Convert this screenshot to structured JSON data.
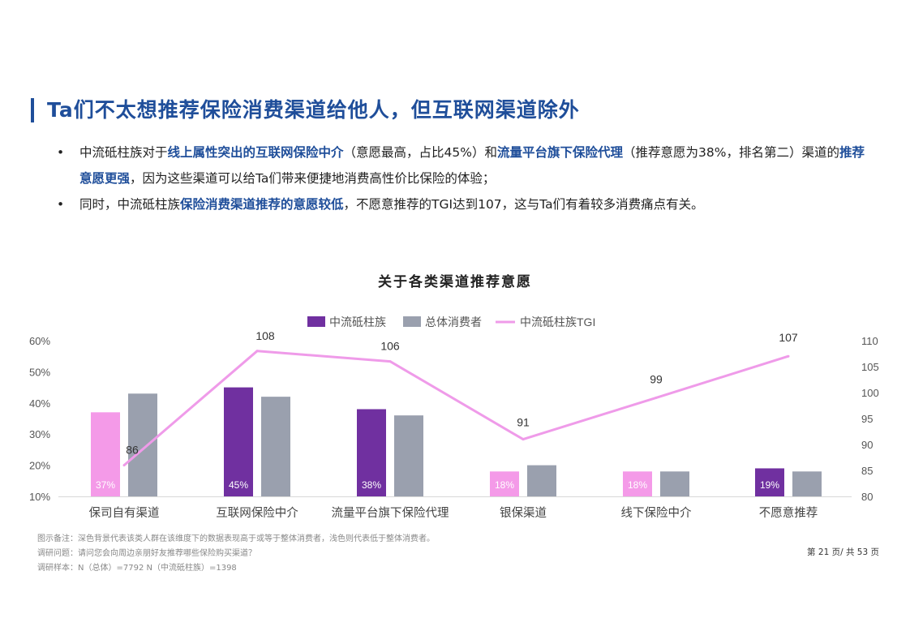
{
  "page": {
    "title": "Ta们不太想推荐保险消费渠道给他人，但互联网渠道除外",
    "bullets": [
      {
        "parts": [
          {
            "t": "中流砥柱族对于",
            "hl": false
          },
          {
            "t": "线上属性突出的互联网保险中介",
            "hl": true
          },
          {
            "t": "（意愿最高，占比45%）和",
            "hl": false
          },
          {
            "t": "流量平台旗下保险代理",
            "hl": true
          },
          {
            "t": "（推荐意愿为38%，排名第二）渠道的",
            "hl": false
          },
          {
            "t": "推荐意愿更强",
            "hl": true
          },
          {
            "t": "，因为这些渠道可以给Ta们带来便捷地消费高性价比保险的体验；",
            "hl": false
          }
        ]
      },
      {
        "parts": [
          {
            "t": "同时，中流砥柱族",
            "hl": false
          },
          {
            "t": "保险消费渠道推荐的意愿较低",
            "hl": true
          },
          {
            "t": "，不愿意推荐的TGI达到107，这与Ta们有着较多消费痛点有关。",
            "hl": false
          }
        ]
      }
    ],
    "bullet_symbol": "•",
    "notes": [
      "图示备注：深色背景代表该类人群在该维度下的数据表现高于或等于整体消费者，浅色则代表低于整体消费者。",
      "调研问题：请问您会向周边亲朋好友推荐哪些保险购买渠道？",
      "调研样本：N（总体）=7792    N（中流砥柱族）=1398"
    ],
    "page_number": "第 21 页/ 共 53 页"
  },
  "chart_data": {
    "type": "bar",
    "title": "关于各类渠道推荐意愿",
    "categories": [
      "保司自有渠道",
      "互联网保险中介",
      "流量平台旗下保险代理",
      "银保渠道",
      "线下保险中介",
      "不愿意推荐"
    ],
    "series": [
      {
        "name": "中流砥柱族",
        "axis": "left",
        "values": [
          37,
          45,
          38,
          18,
          18,
          19
        ],
        "labels": [
          "37%",
          "45%",
          "38%",
          "18%",
          "18%",
          "19%"
        ],
        "dark": [
          false,
          true,
          true,
          false,
          false,
          true
        ]
      },
      {
        "name": "总体消费者",
        "axis": "left",
        "values": [
          43,
          42,
          36,
          20,
          18,
          18
        ]
      },
      {
        "name": "中流砥柱族TGI",
        "type": "line",
        "axis": "right",
        "values": [
          86,
          108,
          106,
          91,
          99,
          107
        ],
        "labels": [
          "86",
          "108",
          "106",
          "91",
          "99",
          "107"
        ]
      }
    ],
    "y_left": {
      "min": 10,
      "max": 60,
      "ticks": [
        "10%",
        "20%",
        "30%",
        "40%",
        "50%",
        "60%"
      ],
      "tick_values": [
        10,
        20,
        30,
        40,
        50,
        60
      ]
    },
    "y_right": {
      "min": 80,
      "max": 110,
      "ticks": [
        "80",
        "85",
        "90",
        "95",
        "100",
        "105",
        "110"
      ],
      "tick_values": [
        80,
        85,
        90,
        95,
        100,
        105,
        110
      ]
    },
    "legend_position": "top-center",
    "grid": false,
    "colors": {
      "dark": "#7030a0",
      "light": "#f49ae8",
      "total": "#9aa0ae",
      "line": "#ef9be9",
      "axis_text": "#555555"
    }
  }
}
